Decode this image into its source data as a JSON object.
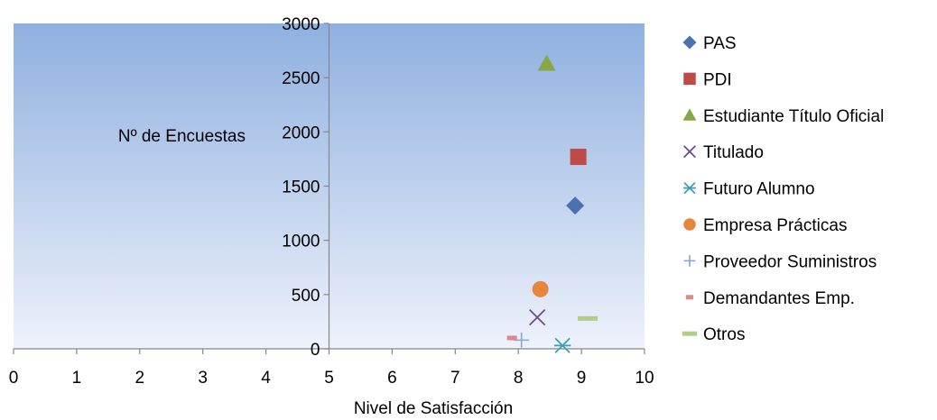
{
  "chart_data": {
    "type": "scatter",
    "xlabel": "Nivel de Satisfacción",
    "ylabel": "Nº de Encuestas",
    "xlim": [
      0,
      10
    ],
    "ylim": [
      0,
      3000
    ],
    "x_ticks": [
      "0",
      "1",
      "2",
      "3",
      "4",
      "5",
      "6",
      "7",
      "8",
      "9",
      "10"
    ],
    "y_ticks": [
      "0",
      "500",
      "1000",
      "1500",
      "2000",
      "2500",
      "3000"
    ],
    "grid": false,
    "legend_position": "right",
    "plot_background": [
      "#8fb0e0",
      "#eef2fb"
    ],
    "series": [
      {
        "name": "PAS",
        "marker": "diamond",
        "color": "#4a72b0",
        "x": 8.9,
        "y": 1320
      },
      {
        "name": "PDI",
        "marker": "square",
        "color": "#be4b48",
        "x": 8.95,
        "y": 1770
      },
      {
        "name": "Estudiante Título Oficial",
        "marker": "triangle",
        "color": "#86a846",
        "x": 8.45,
        "y": 2630
      },
      {
        "name": "Titulado",
        "marker": "x",
        "color": "#6d4d8e",
        "x": 8.3,
        "y": 290
      },
      {
        "name": "Futuro Alumno",
        "marker": "asterisk",
        "color": "#3f9fb1",
        "x": 8.7,
        "y": 30
      },
      {
        "name": "Empresa Prácticas",
        "marker": "circle",
        "color": "#e8853c",
        "x": 8.35,
        "y": 550
      },
      {
        "name": "Proveedor Suministros",
        "marker": "plus",
        "color": "#8aa6d2",
        "x": 8.05,
        "y": 80
      },
      {
        "name": "Demandantes Emp.",
        "marker": "short-dash",
        "color": "#d98a89",
        "x": 7.9,
        "y": 100
      },
      {
        "name": "Otros",
        "marker": "long-dash",
        "color": "#b3cc87",
        "x": 9.1,
        "y": 280
      }
    ]
  }
}
